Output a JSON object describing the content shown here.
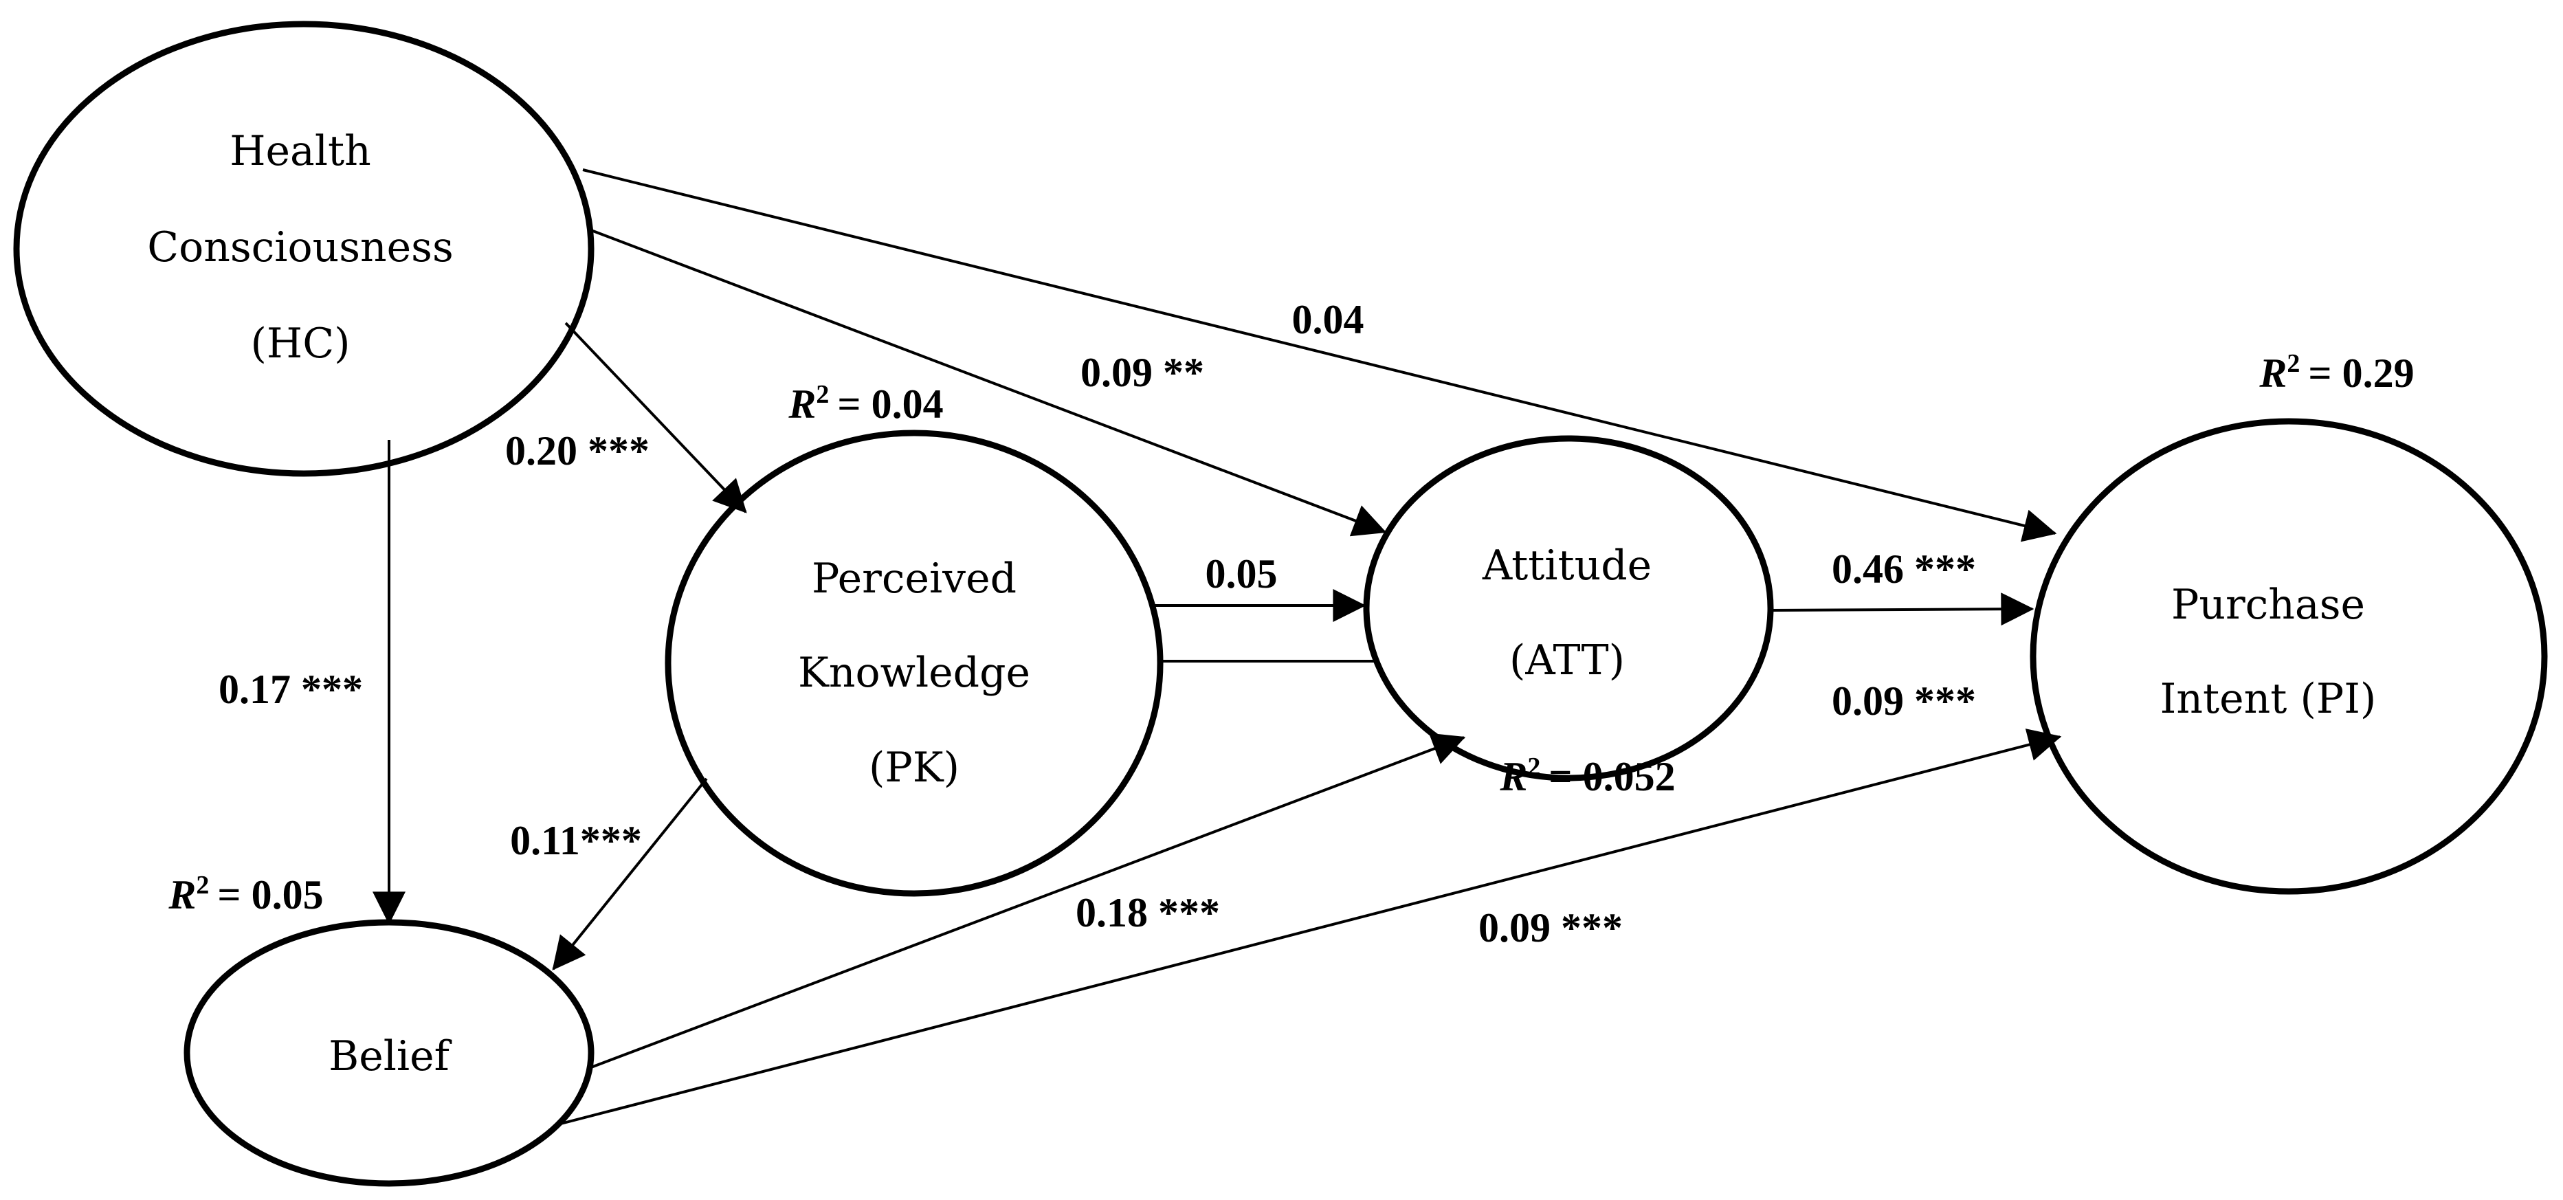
{
  "nodes": {
    "hc": {
      "line1": "Health",
      "line2": "Consciousness",
      "line3": "(HC)"
    },
    "pk": {
      "line1": "Perceived",
      "line2": "Knowledge",
      "line3": "(PK)"
    },
    "att": {
      "line1": "Attitude",
      "line2": "(ATT)"
    },
    "pi": {
      "line1": "Purchase",
      "line2": "Intent (PI)"
    },
    "belief": {
      "line1": "Belief"
    }
  },
  "paths": {
    "hc_pi": "0.04",
    "hc_att": "0.09 **",
    "hc_pk": "0.20 ***",
    "hc_belief": "0.17 ***",
    "pk_att": "0.05",
    "pk_belief": "0.11***",
    "att_pi": "0.46 ***",
    "att_pi_2": "0.09 ***",
    "belief_att": "0.18 ***",
    "belief_pi": "0.09 ***"
  },
  "r_squared": {
    "symbol": "R",
    "sup": "2",
    "pk": "= 0.04",
    "att": "= 0.052",
    "pi": "= 0.29",
    "belief": "= 0.05"
  }
}
